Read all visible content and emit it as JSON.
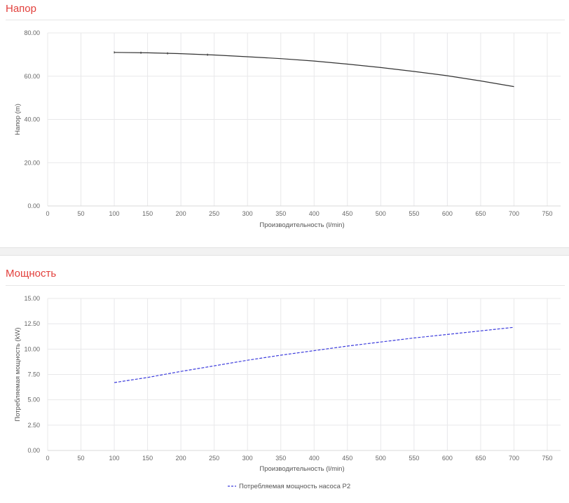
{
  "panels": {
    "head": {
      "title": "Напор"
    },
    "power": {
      "title": "Мощность"
    }
  },
  "colors": {
    "title": "#e2403c",
    "head_line": "#333333",
    "power_line": "#3b3bdc",
    "grid": "#e8e8ea"
  },
  "chart_data": [
    {
      "type": "line",
      "title": "",
      "xlabel": "Производительность (l/min)",
      "ylabel": "Напор (m)",
      "xlim": [
        0,
        770
      ],
      "ylim": [
        0,
        80
      ],
      "x_ticks": [
        0,
        50,
        100,
        150,
        200,
        250,
        300,
        350,
        400,
        450,
        500,
        550,
        600,
        650,
        700,
        750
      ],
      "y_ticks": [
        "0.00",
        "20.00",
        "40.00",
        "60.00",
        "80.00"
      ],
      "grid": true,
      "series": [
        {
          "name": "",
          "style": "solid",
          "color": "#333333",
          "markers": [
            100,
            140,
            180,
            240
          ],
          "points": [
            [
              100,
              71.0
            ],
            [
              150,
              70.8
            ],
            [
              200,
              70.4
            ],
            [
              250,
              69.8
            ],
            [
              300,
              69.0
            ],
            [
              350,
              68.1
            ],
            [
              400,
              67.0
            ],
            [
              450,
              65.6
            ],
            [
              500,
              64.0
            ],
            [
              550,
              62.2
            ],
            [
              600,
              60.2
            ],
            [
              650,
              57.8
            ],
            [
              700,
              55.2
            ]
          ]
        }
      ]
    },
    {
      "type": "line",
      "title": "",
      "xlabel": "Производительность (l/min)",
      "ylabel": "Потребляемая мощность (kW)",
      "xlim": [
        0,
        770
      ],
      "ylim": [
        0,
        15
      ],
      "x_ticks": [
        0,
        50,
        100,
        150,
        200,
        250,
        300,
        350,
        400,
        450,
        500,
        550,
        600,
        650,
        700,
        750
      ],
      "y_ticks": [
        "0.00",
        "2.50",
        "5.00",
        "7.50",
        "10.00",
        "12.50",
        "15.00"
      ],
      "grid": true,
      "legend_position": "bottom-center",
      "series": [
        {
          "name": "Потребляемая мощность насоса P2",
          "style": "dashed",
          "color": "#3b3bdc",
          "points": [
            [
              100,
              6.7
            ],
            [
              150,
              7.2
            ],
            [
              200,
              7.8
            ],
            [
              250,
              8.35
            ],
            [
              300,
              8.9
            ],
            [
              350,
              9.4
            ],
            [
              400,
              9.85
            ],
            [
              450,
              10.3
            ],
            [
              500,
              10.7
            ],
            [
              550,
              11.1
            ],
            [
              600,
              11.45
            ],
            [
              650,
              11.8
            ],
            [
              700,
              12.15
            ]
          ]
        }
      ]
    }
  ]
}
